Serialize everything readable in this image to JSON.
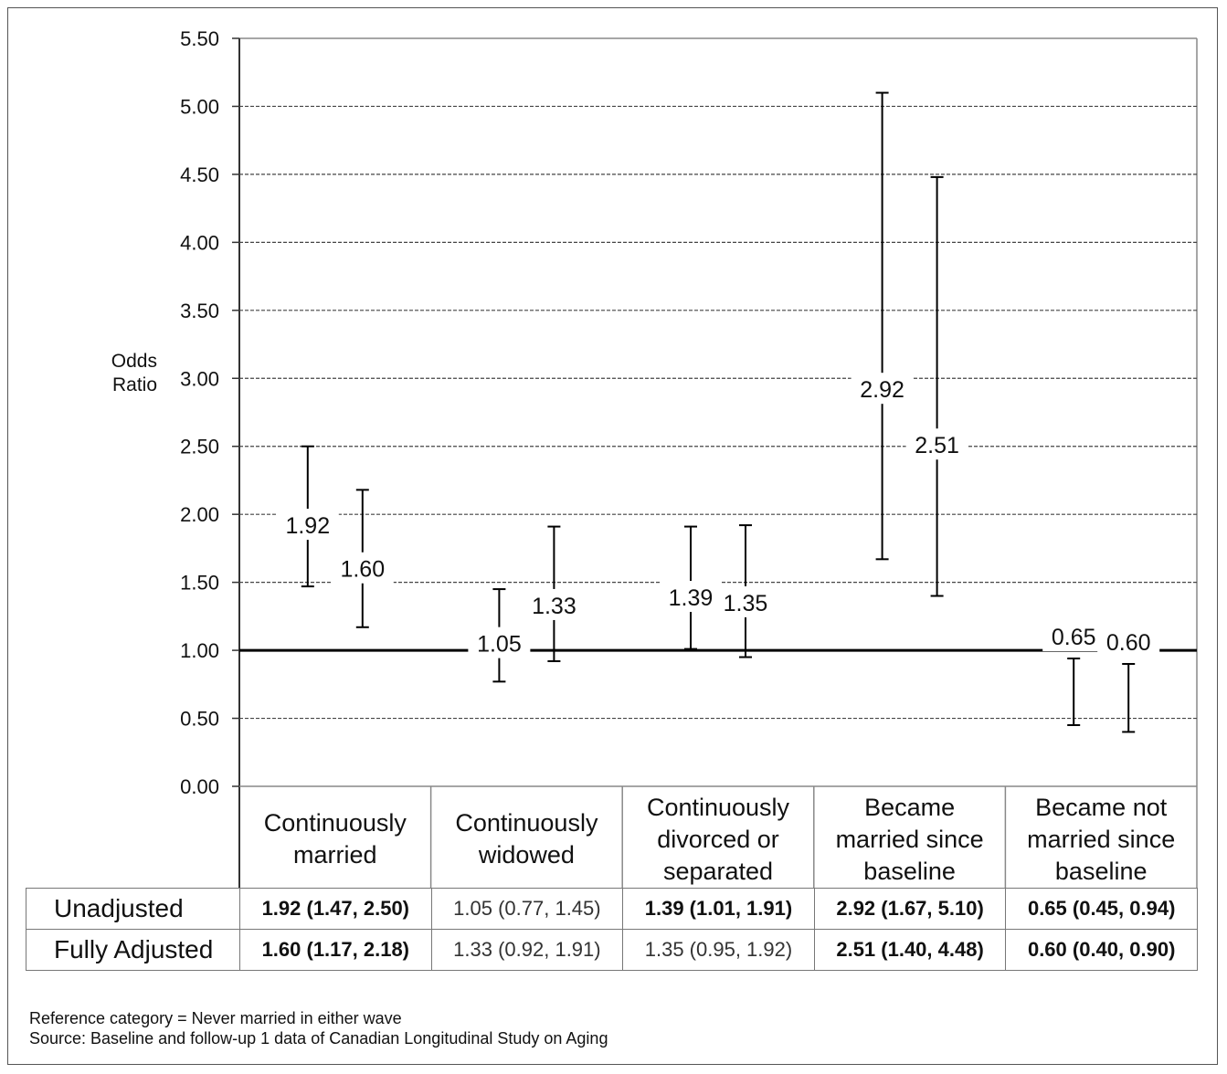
{
  "chart_data": {
    "type": "errorbar",
    "ylabel": "Odds\nRatio",
    "ylim": [
      0,
      5.5
    ],
    "yticks": [
      "0.00",
      "0.50",
      "1.00",
      "1.50",
      "2.00",
      "2.50",
      "3.00",
      "3.50",
      "4.00",
      "4.50",
      "5.00",
      "5.50"
    ],
    "reference_line": 1.0,
    "grid": true,
    "categories": [
      "Continuously\nmarried",
      "Continuously\nwidowed",
      "Continuously\ndivorced or\nseparated",
      "Became\nmarried since\nbaseline",
      "Became not\nmarried since\nbaseline"
    ],
    "series": [
      {
        "name": "Unadjusted",
        "estimates": [
          1.92,
          1.05,
          1.39,
          2.92,
          0.65
        ],
        "lower": [
          1.47,
          0.77,
          1.01,
          1.67,
          0.45
        ],
        "upper": [
          2.5,
          1.45,
          1.91,
          5.1,
          0.94
        ],
        "labels": [
          "1.92",
          "1.05",
          "1.39",
          "2.92",
          "0.65"
        ]
      },
      {
        "name": "Fully Adjusted",
        "estimates": [
          1.6,
          1.33,
          1.35,
          2.51,
          0.6
        ],
        "lower": [
          1.17,
          0.92,
          0.95,
          1.4,
          0.4
        ],
        "upper": [
          2.18,
          1.91,
          1.92,
          4.48,
          0.9
        ],
        "labels": [
          "1.60",
          "1.33",
          "1.35",
          "2.51",
          "0.60"
        ]
      }
    ],
    "table": {
      "rows": [
        {
          "label": "Unadjusted",
          "cells": [
            "1.92 (1.47, 2.50)",
            "1.05 (0.77, 1.45)",
            "1.39 (1.01, 1.91)",
            "2.92 (1.67, 5.10)",
            "0.65 (0.45, 0.94)"
          ],
          "significant": [
            true,
            false,
            true,
            true,
            true
          ]
        },
        {
          "label": "Fully Adjusted",
          "cells": [
            "1.60 (1.17, 2.18)",
            "1.33 (0.92, 1.91)",
            "1.35 (0.95, 1.92)",
            "2.51 (1.40, 4.48)",
            "0.60 (0.40, 0.90)"
          ],
          "significant": [
            true,
            false,
            false,
            true,
            true
          ]
        }
      ]
    }
  },
  "notes": {
    "line1": "Reference category = Never married in either wave",
    "line2": "Source: Baseline and follow-up 1 data of Canadian Longitudinal Study on Aging"
  }
}
